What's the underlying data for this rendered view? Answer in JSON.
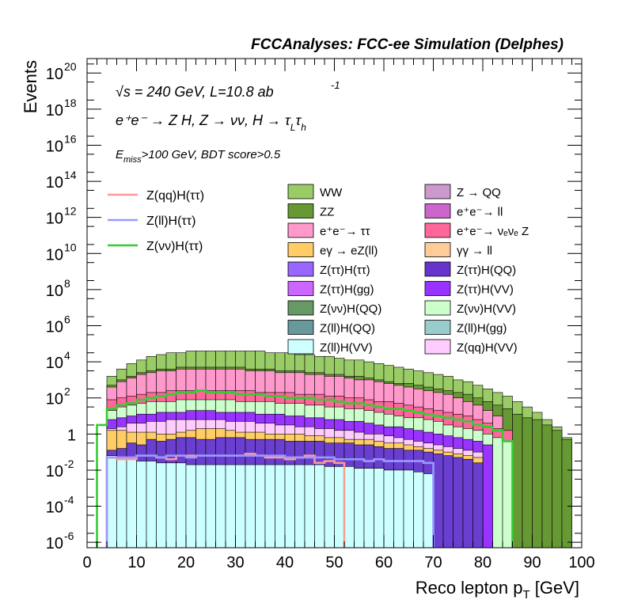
{
  "chart_data": {
    "type": "stacked-histogram",
    "title": "FCCAnalyses: FCC-ee Simulation (Delphes)",
    "xlabel": "Reco lepton p_T [GeV]",
    "ylabel": "Events",
    "xlim": [
      0,
      100
    ],
    "ylim_log10": [
      -6.3,
      20.8
    ],
    "yscale": "log",
    "x_ticks": [
      0,
      10,
      20,
      30,
      40,
      50,
      60,
      70,
      80,
      90,
      100
    ],
    "y_ticks": [
      {
        "exp": 20,
        "label": "10",
        "sup": "20"
      },
      {
        "exp": 18,
        "label": "10",
        "sup": "18"
      },
      {
        "exp": 16,
        "label": "10",
        "sup": "16"
      },
      {
        "exp": 14,
        "label": "10",
        "sup": "14"
      },
      {
        "exp": 12,
        "label": "10",
        "sup": "12"
      },
      {
        "exp": 10,
        "label": "10",
        "sup": "10"
      },
      {
        "exp": 8,
        "label": "10",
        "sup": "8"
      },
      {
        "exp": 6,
        "label": "10",
        "sup": "6"
      },
      {
        "exp": 4,
        "label": "10",
        "sup": "4"
      },
      {
        "exp": 2,
        "label": "10",
        "sup": "2"
      },
      {
        "exp": 0,
        "label": "1",
        "sup": ""
      },
      {
        "exp": -2,
        "label": "10",
        "sup": "-2"
      },
      {
        "exp": -4,
        "label": "10",
        "sup": "-4"
      },
      {
        "exp": -6,
        "label": "10",
        "sup": "-6"
      }
    ],
    "annotations": {
      "energy": "√s = 240 GeV, L=10.8 ab",
      "energy_sup": "-1",
      "process": "e⁺e⁻ → Z H, Z → νν, H → τ",
      "process_sub1": "L",
      "process_mid": "τ",
      "process_sub2": "h",
      "cuts_pre": "E",
      "cuts_sub": "miss",
      "cuts_post": ">100 GeV, BDT score>0.5"
    },
    "bin_edges_note": "2 GeV bins",
    "bins_x": [
      0,
      2,
      4,
      6,
      8,
      10,
      12,
      14,
      16,
      18,
      20,
      22,
      24,
      26,
      28,
      30,
      32,
      34,
      36,
      38,
      40,
      42,
      44,
      46,
      48,
      50,
      52,
      54,
      56,
      58,
      60,
      62,
      64,
      66,
      68,
      70,
      72,
      74,
      76,
      78,
      80,
      82,
      84,
      86,
      88,
      90,
      92,
      94,
      96,
      98,
      100
    ],
    "stack_layers": [
      {
        "name": "Z(ll)H(VV)",
        "color": "#ccffff",
        "log10_top": [
          null,
          null,
          -1.2,
          -1.3,
          -1.4,
          -1.5,
          -1.5,
          -1.6,
          -1.6,
          -1.6,
          -1.7,
          -1.7,
          -1.7,
          -1.7,
          -1.7,
          -1.7,
          -1.7,
          -1.7,
          -1.7,
          -1.7,
          -1.7,
          -1.7,
          -1.7,
          -1.7,
          -1.8,
          -1.8,
          -1.8,
          -1.9,
          -1.9,
          -1.9,
          -2.0,
          -2.0,
          -2.0,
          -2.1,
          -2.2,
          null,
          null,
          null,
          null,
          null,
          null,
          null,
          null,
          null,
          null,
          null,
          null,
          null,
          null,
          null
        ]
      },
      {
        "name": "Z(ττ)H(ττ)",
        "color": "#6a3fd0",
        "log10_top": [
          null,
          null,
          -0.9,
          -0.8,
          -0.5,
          -0.6,
          -0.3,
          -0.4,
          -0.3,
          -0.2,
          -0.2,
          -0.3,
          -0.3,
          -0.2,
          -0.2,
          -0.2,
          -0.3,
          -0.3,
          -0.3,
          -0.3,
          -0.4,
          -0.4,
          -0.4,
          -0.4,
          -0.5,
          -0.5,
          -0.5,
          -0.6,
          -0.6,
          -0.7,
          -0.8,
          -0.8,
          -0.9,
          -0.9,
          -1.0,
          -1.1,
          -1.2,
          -1.3,
          -1.4,
          -1.6,
          null,
          null,
          null,
          null,
          null,
          null,
          null,
          null,
          null,
          null
        ]
      },
      {
        "name": "eγ → eZ(ll)",
        "color": "#ffcc66",
        "log10_top": [
          null,
          null,
          0.2,
          0.2,
          0.1,
          0.1,
          0.1,
          0.0,
          0.0,
          0.1,
          0.2,
          0.3,
          0.3,
          0.3,
          0.2,
          0.1,
          0.1,
          0.1,
          0.0,
          0.0,
          0.0,
          0.0,
          -0.1,
          -0.1,
          -0.2,
          -0.2,
          -0.3,
          -0.3,
          -0.3,
          -0.4,
          -0.5,
          -0.5,
          -0.6,
          -0.7,
          -0.8,
          -0.9,
          -1.0,
          -1.1,
          -1.2,
          -1.3,
          null,
          null,
          null,
          null,
          null,
          null,
          null,
          null,
          null,
          null
        ]
      },
      {
        "name": "Z(qq)H(VV)",
        "color": "#ffccff",
        "log10_top": [
          null,
          null,
          0.3,
          0.4,
          0.6,
          0.6,
          0.7,
          0.7,
          0.8,
          0.8,
          0.8,
          0.8,
          0.8,
          0.8,
          0.7,
          0.7,
          0.7,
          0.6,
          0.6,
          0.5,
          0.5,
          0.4,
          0.4,
          0.3,
          0.3,
          0.2,
          0.2,
          0.1,
          0.0,
          0.0,
          -0.1,
          -0.2,
          -0.3,
          -0.4,
          -0.5,
          -0.6,
          -0.7,
          -0.8,
          -0.9,
          -1.0,
          null,
          null,
          null,
          null,
          null,
          null,
          null,
          null,
          null,
          null
        ]
      },
      {
        "name": "Z(ττ)H(VV)",
        "color": "#9933ff",
        "log10_top": [
          null,
          null,
          0.8,
          0.9,
          1.0,
          1.1,
          1.1,
          1.2,
          1.2,
          1.2,
          1.3,
          1.3,
          1.3,
          1.2,
          1.2,
          1.2,
          1.2,
          1.1,
          1.1,
          1.1,
          1.0,
          1.0,
          0.9,
          0.9,
          0.8,
          0.8,
          0.7,
          0.7,
          0.6,
          0.5,
          0.4,
          0.4,
          0.3,
          0.2,
          0.1,
          0.0,
          -0.1,
          -0.2,
          -0.3,
          -0.4,
          -0.6,
          null,
          null,
          null,
          null,
          null,
          null,
          null,
          null,
          null
        ]
      },
      {
        "name": "Z(νν)H(VV)",
        "color": "#ccffcc",
        "log10_top": [
          null,
          null,
          1.3,
          1.5,
          1.6,
          1.7,
          1.8,
          1.8,
          1.8,
          1.9,
          1.9,
          1.9,
          1.9,
          1.9,
          1.9,
          1.8,
          1.8,
          1.8,
          1.8,
          1.7,
          1.7,
          1.7,
          1.6,
          1.6,
          1.5,
          1.5,
          1.4,
          1.4,
          1.3,
          1.2,
          1.1,
          1.0,
          0.9,
          0.9,
          0.8,
          0.7,
          0.5,
          0.4,
          0.3,
          0.2,
          0.0,
          -0.2,
          -0.4,
          null,
          null,
          null,
          null,
          null,
          null,
          null
        ]
      },
      {
        "name": "e⁺e⁻→ ν<sub>e</sub>ν<sub>e</sub> Z",
        "color": "#ff6699",
        "log10_top": [
          null,
          null,
          1.9,
          2.0,
          2.1,
          2.2,
          2.3,
          2.3,
          2.4,
          2.4,
          2.4,
          2.4,
          2.4,
          2.4,
          2.4,
          2.4,
          2.4,
          2.3,
          2.3,
          2.3,
          2.3,
          2.2,
          2.2,
          2.2,
          2.1,
          2.1,
          2.0,
          2.0,
          1.9,
          1.8,
          1.8,
          1.7,
          1.6,
          1.5,
          1.4,
          1.3,
          1.2,
          1.1,
          1.0,
          0.8,
          0.6,
          0.3,
          0.2,
          null,
          null,
          null,
          null,
          null,
          null,
          null
        ]
      },
      {
        "name": "e⁺e⁻→ ττ",
        "color": "#ff99cc",
        "log10_top": [
          null,
          null,
          2.6,
          2.9,
          3.1,
          3.3,
          3.4,
          3.5,
          3.5,
          3.6,
          3.6,
          3.6,
          3.6,
          3.6,
          3.6,
          3.6,
          3.5,
          3.5,
          3.5,
          3.4,
          3.4,
          3.4,
          3.3,
          3.3,
          3.2,
          3.2,
          3.1,
          3.0,
          3.0,
          2.9,
          2.8,
          2.7,
          2.6,
          2.5,
          2.4,
          2.3,
          2.2,
          2.0,
          1.8,
          1.6,
          1.3,
          1.0,
          null,
          null,
          null,
          null,
          null,
          null,
          null,
          null
        ]
      },
      {
        "name": "ZZ",
        "color": "#669933",
        "log10_top": [
          null,
          null,
          2.7,
          3.0,
          3.2,
          3.4,
          3.5,
          3.6,
          3.6,
          3.7,
          3.7,
          3.7,
          3.7,
          3.7,
          3.7,
          3.7,
          3.6,
          3.6,
          3.6,
          3.5,
          3.5,
          3.5,
          3.4,
          3.4,
          3.3,
          3.3,
          3.2,
          3.2,
          3.1,
          3.0,
          2.9,
          2.8,
          2.8,
          2.7,
          2.6,
          2.5,
          2.4,
          2.3,
          2.2,
          2.0,
          1.8,
          1.6,
          1.4,
          1.1,
          0.9,
          0.8,
          0.5,
          0.2,
          -0.3,
          null
        ]
      },
      {
        "name": "WW",
        "color": "#99cc66",
        "log10_top": [
          null,
          null,
          3.2,
          3.6,
          3.9,
          4.1,
          4.3,
          4.4,
          4.5,
          4.5,
          4.6,
          4.6,
          4.6,
          4.6,
          4.6,
          4.6,
          4.6,
          4.6,
          4.5,
          4.5,
          4.5,
          4.4,
          4.4,
          4.3,
          4.3,
          4.2,
          4.1,
          4.1,
          4.0,
          3.9,
          3.8,
          3.7,
          3.6,
          3.5,
          3.4,
          3.3,
          3.2,
          3.0,
          2.9,
          2.7,
          2.5,
          2.3,
          2.1,
          1.8,
          1.5,
          1.2,
          0.8,
          0.4,
          -0.2,
          null
        ]
      }
    ],
    "overlay_lines": [
      {
        "name": "Z(qq)H(ττ)",
        "color": "#ff9999",
        "log10": [
          null,
          null,
          -1.3,
          -1.4,
          -1.4,
          -1.2,
          -1.2,
          -1.3,
          -1.4,
          -1.2,
          -1.2,
          -1.2,
          -1.2,
          -1.2,
          -1.2,
          -1.2,
          -1.1,
          -1.2,
          -1.3,
          -1.3,
          -1.4,
          -1.3,
          -1.2,
          -1.6,
          -1.5,
          -1.6,
          -7.0,
          -7.0,
          -7.0,
          -7.0,
          -7.0,
          -7.0,
          -7.0,
          -7.0,
          -7.0,
          -7.0,
          null,
          null,
          null,
          null,
          null,
          null,
          null,
          null,
          null,
          null,
          null,
          null,
          null,
          null
        ]
      },
      {
        "name": "Z(ll)H(ττ)",
        "color": "#9999ff",
        "log10": [
          null,
          null,
          -1.3,
          -1.3,
          -1.3,
          -1.2,
          -1.2,
          -1.3,
          -1.2,
          -1.2,
          -1.3,
          -1.2,
          -1.2,
          -1.2,
          -1.2,
          -1.2,
          -1.2,
          -1.2,
          -1.2,
          -1.2,
          -1.3,
          -1.3,
          -1.3,
          -1.3,
          -1.3,
          -1.4,
          -1.4,
          -1.4,
          -1.5,
          -1.4,
          -1.5,
          -1.5,
          -1.5,
          -1.5,
          -1.6,
          -7.0,
          null,
          null,
          null,
          null,
          null,
          null,
          null,
          null,
          null,
          null,
          null,
          null,
          null,
          null
        ]
      },
      {
        "name": "Z(νν)H(ττ)",
        "color": "#33cc33",
        "log10": [
          null,
          0.5,
          1.4,
          1.6,
          1.7,
          1.9,
          2.0,
          2.1,
          2.2,
          2.3,
          2.3,
          2.4,
          2.3,
          2.3,
          2.3,
          2.2,
          2.2,
          2.2,
          2.1,
          2.1,
          2.0,
          2.0,
          2.0,
          1.9,
          1.9,
          1.8,
          1.7,
          1.7,
          1.6,
          1.5,
          1.4,
          1.4,
          1.3,
          1.2,
          1.1,
          1.0,
          0.9,
          0.8,
          0.7,
          0.5,
          0.4,
          0.2,
          -0.4,
          -7.0,
          null,
          null,
          null,
          null,
          null,
          null
        ]
      }
    ],
    "legend_lines": [
      {
        "label": "Z(qq)H(ττ)",
        "color": "#ff9999"
      },
      {
        "label": "Z(ll)H(ττ)",
        "color": "#9999ff"
      },
      {
        "label": "Z(νν)H(ττ)",
        "color": "#33cc33"
      }
    ],
    "legend_boxes": [
      {
        "label": "WW",
        "color": "#99cc66"
      },
      {
        "label": "Z → QQ",
        "color": "#cc99cc"
      },
      {
        "label": "ZZ",
        "color": "#669933"
      },
      {
        "label": "e⁺e⁻→ ll",
        "color": "#cc66cc"
      },
      {
        "label": "e⁺e⁻→ ττ",
        "color": "#ff99cc"
      },
      {
        "label": "e⁺e⁻→ νₑνₑ Z",
        "color": "#ff6699"
      },
      {
        "label": "eγ → eZ(ll)",
        "color": "#ffcc66"
      },
      {
        "label": "γγ → ll",
        "color": "#ffcc99"
      },
      {
        "label": "Z(ττ)H(ττ)",
        "color": "#9966ff"
      },
      {
        "label": "Z(ττ)H(QQ)",
        "color": "#6633cc"
      },
      {
        "label": "Z(ττ)H(gg)",
        "color": "#cc66ff"
      },
      {
        "label": "Z(ττ)H(VV)",
        "color": "#9933ff"
      },
      {
        "label": "Z(νν)H(QQ)",
        "color": "#669966"
      },
      {
        "label": "Z(νν)H(VV)",
        "color": "#ccffcc"
      },
      {
        "label": "Z(ll)H(QQ)",
        "color": "#669999"
      },
      {
        "label": "Z(ll)H(gg)",
        "color": "#99cccc"
      },
      {
        "label": "Z(ll)H(VV)",
        "color": "#ccffff"
      },
      {
        "label": "Z(qq)H(VV)",
        "color": "#ffccff"
      }
    ]
  }
}
